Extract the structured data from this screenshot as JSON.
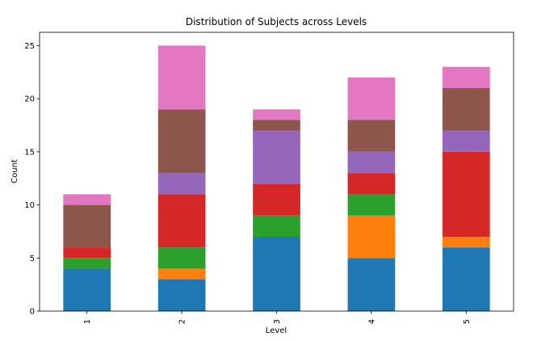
{
  "chart_data": {
    "type": "bar",
    "stacked": true,
    "title": "Distribution of Subjects across Levels",
    "xlabel": "Level",
    "ylabel": "Count",
    "categories": [
      "1",
      "2",
      "3",
      "4",
      "5"
    ],
    "ylim": [
      0,
      26.25
    ],
    "yticks": [
      0,
      5,
      10,
      15,
      20,
      25
    ],
    "grid": false,
    "legend": "none",
    "series": [
      {
        "color": "#1f77b4",
        "values": [
          4,
          3,
          7,
          5,
          6
        ]
      },
      {
        "color": "#ff7f0e",
        "values": [
          0,
          1,
          0,
          4,
          1
        ]
      },
      {
        "color": "#2ca02c",
        "values": [
          1,
          2,
          2,
          2,
          0
        ]
      },
      {
        "color": "#d62728",
        "values": [
          1,
          5,
          3,
          2,
          8
        ]
      },
      {
        "color": "#9467bd",
        "values": [
          0,
          2,
          5,
          2,
          2
        ]
      },
      {
        "color": "#8c564b",
        "values": [
          4,
          6,
          1,
          3,
          4
        ]
      },
      {
        "color": "#e377c2",
        "values": [
          1,
          6,
          1,
          4,
          2
        ]
      }
    ]
  }
}
